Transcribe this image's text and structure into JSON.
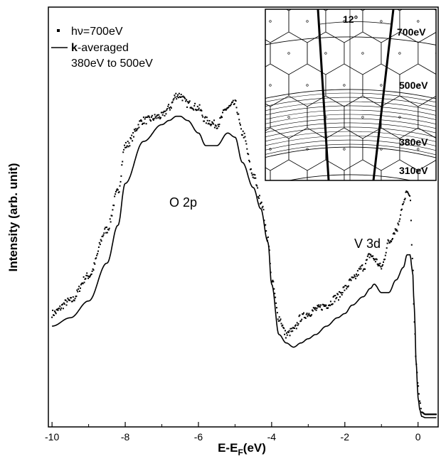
{
  "chart_data": {
    "type": "line",
    "title": "",
    "xlabel_main": "E-E",
    "xlabel_sub": "F",
    "xlabel_unit": "(eV)",
    "ylabel": "Intensity (arb. unit)",
    "xlim": [
      -10.1,
      0.55
    ],
    "ylim": [
      0,
      1
    ],
    "x_ticks": [
      -10,
      -8,
      -6,
      -4,
      -2,
      0
    ],
    "x_tick_labels": [
      "-10",
      "-8",
      "-6",
      "-4",
      "-2",
      "0"
    ],
    "grid": false,
    "legend_position": "top-left",
    "series": [
      {
        "name": "hν=700eV",
        "style": "dots",
        "x": [
          -10.0,
          -9.5,
          -9.0,
          -8.5,
          -8.2,
          -8.0,
          -7.5,
          -7.0,
          -6.8,
          -6.6,
          -6.5,
          -6.3,
          -6.0,
          -5.8,
          -5.5,
          -5.2,
          -5.0,
          -4.8,
          -4.5,
          -4.3,
          -4.1,
          -4.0,
          -3.8,
          -3.6,
          -3.4,
          -3.2,
          -3.0,
          -2.8,
          -2.5,
          -2.2,
          -2.0,
          -1.8,
          -1.5,
          -1.3,
          -1.2,
          -1.0,
          -0.8,
          -0.6,
          -0.4,
          -0.3,
          -0.22,
          -0.15,
          -0.1,
          -0.05,
          0.0,
          0.05,
          0.1,
          0.2,
          0.3,
          0.5
        ],
        "y": [
          0.27,
          0.3,
          0.36,
          0.47,
          0.56,
          0.67,
          0.73,
          0.74,
          0.76,
          0.79,
          0.79,
          0.77,
          0.76,
          0.73,
          0.72,
          0.76,
          0.77,
          0.7,
          0.6,
          0.54,
          0.45,
          0.35,
          0.26,
          0.22,
          0.23,
          0.26,
          0.27,
          0.28,
          0.29,
          0.31,
          0.33,
          0.35,
          0.38,
          0.41,
          0.4,
          0.38,
          0.44,
          0.47,
          0.53,
          0.56,
          0.55,
          0.4,
          0.25,
          0.15,
          0.1,
          0.06,
          0.035,
          0.03,
          0.03,
          0.03
        ]
      },
      {
        "name": "k-averaged 380eV to 500eV",
        "style": "line",
        "x": [
          -10.0,
          -9.5,
          -9.0,
          -8.5,
          -8.2,
          -8.0,
          -7.5,
          -7.0,
          -6.8,
          -6.6,
          -6.5,
          -6.3,
          -6.0,
          -5.8,
          -5.5,
          -5.2,
          -5.0,
          -4.8,
          -4.5,
          -4.3,
          -4.1,
          -4.0,
          -3.8,
          -3.6,
          -3.4,
          -3.2,
          -3.0,
          -2.8,
          -2.5,
          -2.2,
          -2.0,
          -1.8,
          -1.5,
          -1.3,
          -1.2,
          -1.0,
          -0.8,
          -0.6,
          -0.4,
          -0.3,
          -0.22,
          -0.15,
          -0.1,
          -0.05,
          0.0,
          0.05,
          0.1,
          0.2,
          0.3,
          0.5
        ],
        "y": [
          0.24,
          0.26,
          0.3,
          0.39,
          0.48,
          0.58,
          0.68,
          0.72,
          0.73,
          0.74,
          0.74,
          0.73,
          0.7,
          0.67,
          0.67,
          0.7,
          0.69,
          0.63,
          0.57,
          0.52,
          0.44,
          0.34,
          0.22,
          0.2,
          0.19,
          0.2,
          0.21,
          0.22,
          0.24,
          0.26,
          0.27,
          0.29,
          0.31,
          0.33,
          0.34,
          0.32,
          0.32,
          0.35,
          0.38,
          0.41,
          0.41,
          0.37,
          0.28,
          0.15,
          0.07,
          0.04,
          0.025,
          0.022,
          0.022,
          0.022
        ]
      }
    ],
    "annotations": [
      {
        "label": "O 2p",
        "x": -5.5,
        "y": 0.6
      },
      {
        "label": "V 3d",
        "x": -1.9,
        "y": 0.45
      }
    ],
    "legend": {
      "dots_label": "hν=700eV",
      "line_label_bold": "k",
      "line_label_rest": "-averaged",
      "line_label_second": "380eV to 500eV"
    },
    "inset": {
      "angle_label": "12°",
      "energy_labels": [
        "700eV",
        "500eV",
        "380eV",
        "310eV"
      ]
    }
  }
}
